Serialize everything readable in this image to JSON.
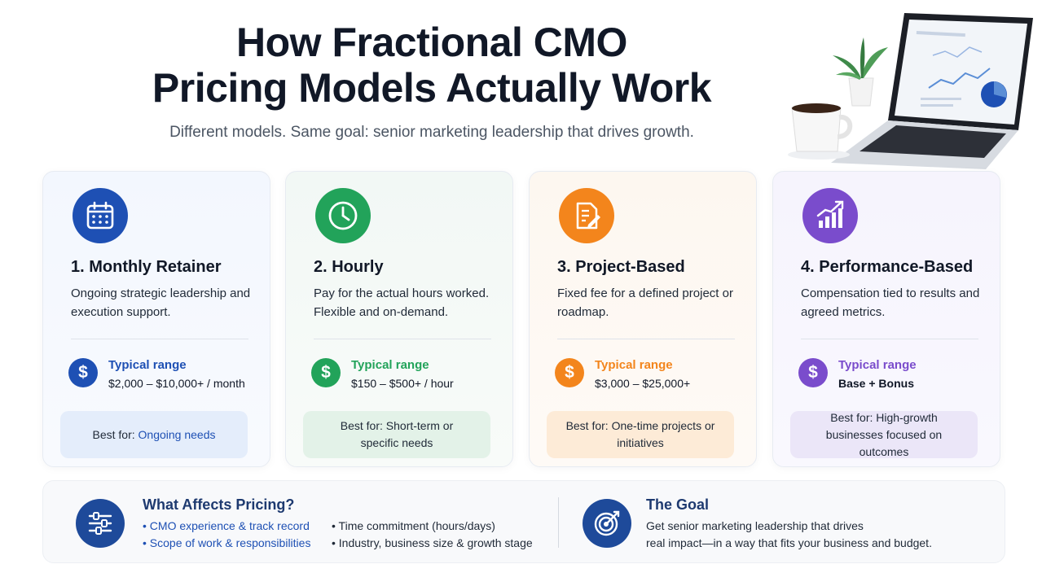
{
  "header": {
    "title_line1": "How Fractional CMO",
    "title_line2": "Pricing Models Actually Work",
    "subtitle": "Different models. Same goal: senior marketing leadership that drives growth."
  },
  "cards": [
    {
      "title": "1. Monthly Retainer",
      "desc": "Ongoing strategic leadership and execution support.",
      "range_label": "Typical range",
      "range_value": "$2,000 – $10,000+ / month",
      "best_prefix": "Best for:",
      "best_value": "Ongoing needs",
      "icon": "calendar-icon",
      "color": "#1e50b4"
    },
    {
      "title": "2. Hourly",
      "desc": "Pay for the actual hours worked. Flexible and on-demand.",
      "range_label": "Typical range",
      "range_value": "$150 – $500+ / hour",
      "best_prefix": "Best for:",
      "best_value": "Short-term or specific needs",
      "icon": "clock-icon",
      "color": "#22a35a"
    },
    {
      "title": "3. Project-Based",
      "desc": "Fixed fee for a defined project or roadmap.",
      "range_label": "Typical range",
      "range_value": "$3,000 – $25,000+",
      "best_prefix": "Best for:",
      "best_value": "One-time projects or initiatives",
      "icon": "document-edit-icon",
      "color": "#f3851c"
    },
    {
      "title": "4. Performance-Based",
      "desc": "Compensation tied to results and agreed metrics.",
      "range_label": "Typical range",
      "range_value": "Base + Bonus",
      "best_prefix": "Best for:",
      "best_value": "High-growth businesses focused on outcomes",
      "icon": "growth-chart-icon",
      "color": "#7a4ccc"
    }
  ],
  "dollar_symbol": "$",
  "factors": {
    "title": "What Affects Pricing?",
    "items_left": [
      "CMO experience & track record",
      "Scope of work & responsibilities"
    ],
    "items_right": [
      "Time commitment (hours/days)",
      "Industry, business size & growth stage"
    ],
    "icon": "sliders-icon"
  },
  "goal": {
    "title": "The Goal",
    "text_line1": "Get senior marketing leadership that drives",
    "text_line2": "real impact—in a way that fits your business and budget.",
    "icon": "target-icon"
  }
}
